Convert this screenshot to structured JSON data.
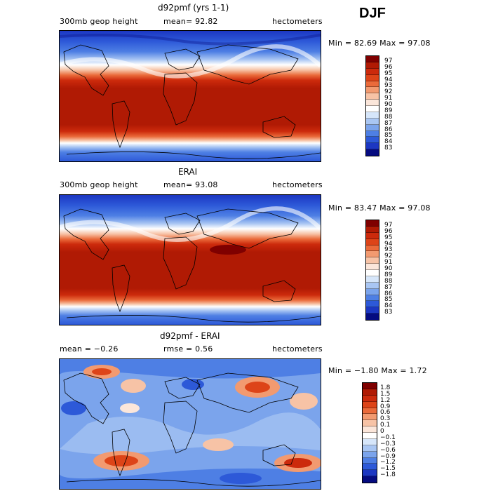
{
  "season": "DJF",
  "panels": [
    {
      "title": "d92pmf (yrs 1-1)",
      "left_label": "300mb geop height",
      "stat_label": "mean=  92.82",
      "units": "hectometers",
      "minmax": "Min =  82.69 Max =  97.08",
      "colorbar": {
        "labels": [
          "97",
          "96",
          "95",
          "94",
          "93",
          "92",
          "91",
          "90",
          "89",
          "88",
          "87",
          "86",
          "85",
          "84",
          "83"
        ],
        "colors": [
          "#7f0000",
          "#b01a04",
          "#cc2a0c",
          "#dd4418",
          "#ea6a3a",
          "#f29a70",
          "#f7c3a6",
          "#fbe6da",
          "#ffffff",
          "#d6e6fa",
          "#a9c6f3",
          "#7ba4ec",
          "#4e7fe4",
          "#2d59d8",
          "#1c37c2",
          "#050b80"
        ]
      }
    },
    {
      "title": "ERAI",
      "left_label": "300mb geop height",
      "stat_label": "mean=  93.08",
      "units": "hectometers",
      "minmax": "Min =  83.47 Max =  97.08",
      "colorbar": {
        "labels": [
          "97",
          "96",
          "95",
          "94",
          "93",
          "92",
          "91",
          "90",
          "89",
          "88",
          "87",
          "86",
          "85",
          "84",
          "83"
        ],
        "colors": [
          "#7f0000",
          "#b01a04",
          "#cc2a0c",
          "#dd4418",
          "#ea6a3a",
          "#f29a70",
          "#f7c3a6",
          "#fbe6da",
          "#ffffff",
          "#d6e6fa",
          "#a9c6f3",
          "#7ba4ec",
          "#4e7fe4",
          "#2d59d8",
          "#1c37c2",
          "#050b80"
        ]
      }
    },
    {
      "title": "d92pmf - ERAI",
      "left_label": "mean =  −0.26",
      "stat_label": "rmse =   0.56",
      "units": "hectometers",
      "minmax": "Min =  −1.80 Max =   1.72",
      "colorbar": {
        "labels": [
          "1.8",
          "1.5",
          "1.2",
          "0.9",
          "0.6",
          "0.3",
          "0.1",
          "0",
          "−0.1",
          "−0.3",
          "−0.6",
          "−0.9",
          "−1.2",
          "−1.5",
          "−1.8"
        ],
        "colors": [
          "#7f0000",
          "#b01a04",
          "#cc2a0c",
          "#dd4418",
          "#ea6a3a",
          "#f29a70",
          "#f7c3a6",
          "#fbe6da",
          "#ffffff",
          "#d6e6fa",
          "#a9c6f3",
          "#7ba4ec",
          "#4e7fe4",
          "#2d59d8",
          "#1c37c2",
          "#050b80"
        ]
      }
    }
  ]
}
